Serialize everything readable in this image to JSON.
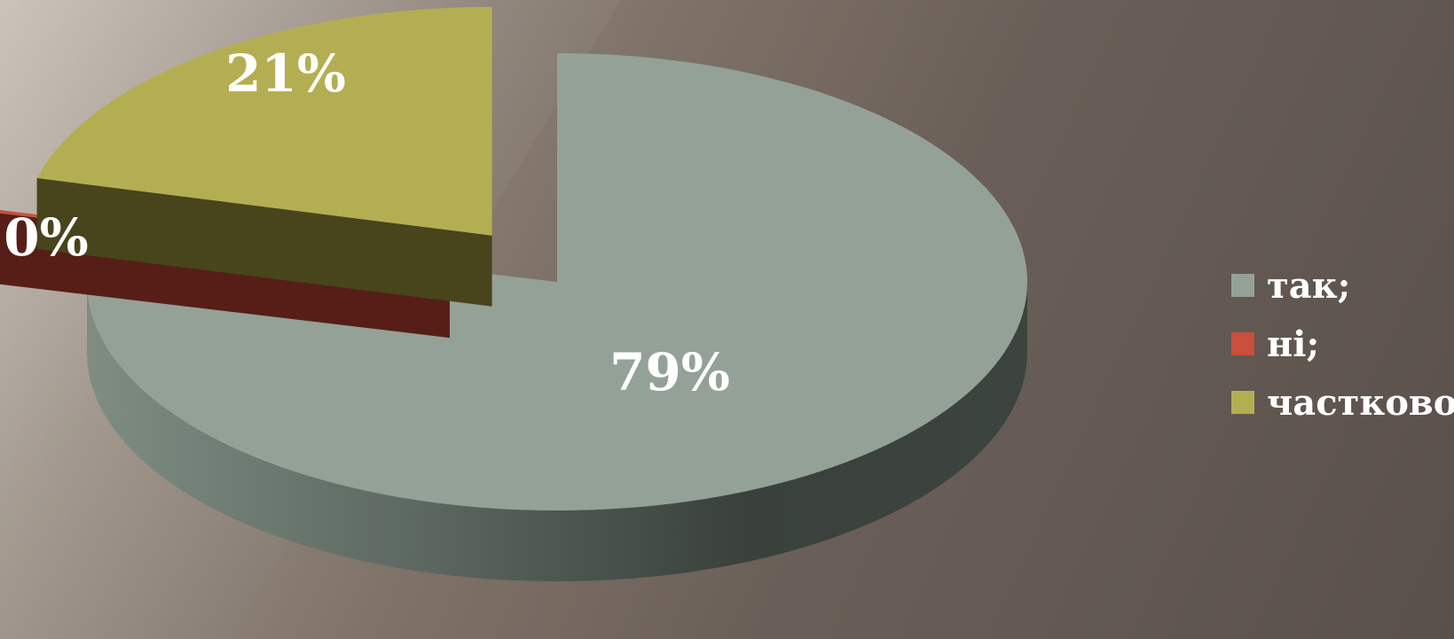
{
  "chart_data": {
    "type": "pie",
    "style": "3d-exploded",
    "categories": [
      "так;",
      "ні;",
      "частково."
    ],
    "values": [
      79,
      0,
      21
    ],
    "labels": [
      "79%",
      "0%",
      "21%"
    ],
    "colors": {
      "так;": "#94a197",
      "ні;": "#c9503c",
      "частково.": "#b4ae52"
    },
    "side_colors": {
      "так;": "#4d564f",
      "ні;": "#561e17",
      "частково.": "#48441c"
    },
    "legend_placement": "right"
  },
  "legend": {
    "items": [
      {
        "label": "так;",
        "color": "#94a197"
      },
      {
        "label": "ні;",
        "color": "#c9503c"
      },
      {
        "label": "частково.",
        "color": "#b4ae52"
      }
    ]
  }
}
